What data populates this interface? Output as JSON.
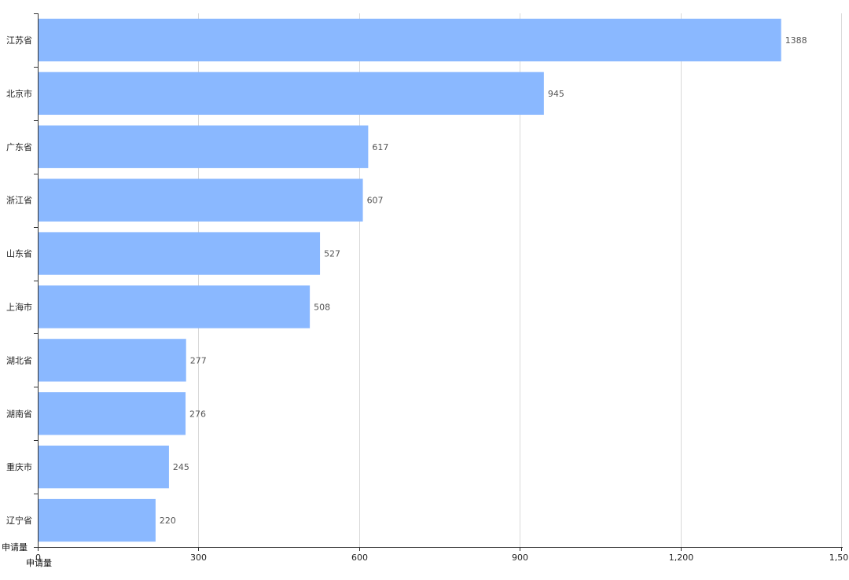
{
  "chart_data": {
    "type": "bar",
    "orientation": "horizontal",
    "categories": [
      "江苏省",
      "北京市",
      "广东省",
      "浙江省",
      "山东省",
      "上海市",
      "湖北省",
      "湖南省",
      "重庆市",
      "辽宁省"
    ],
    "series": [
      {
        "values": [
          1388,
          945,
          617,
          607,
          527,
          508,
          277,
          276,
          245,
          220
        ]
      }
    ],
    "value_labels": [
      "1388",
      "945",
      "617",
      "607",
      "527",
      "508",
      "277",
      "276",
      "245",
      "220"
    ],
    "x_ticks": [
      "0",
      "300",
      "600",
      "900",
      "1,200",
      "1,500"
    ],
    "x_tick_values": [
      0,
      300,
      600,
      900,
      1200,
      1500
    ],
    "xlim": [
      0,
      1500
    ],
    "ylabel": "申请量",
    "xlabel": "申请量",
    "grid": true,
    "bar_color": "#8ab8ff"
  }
}
